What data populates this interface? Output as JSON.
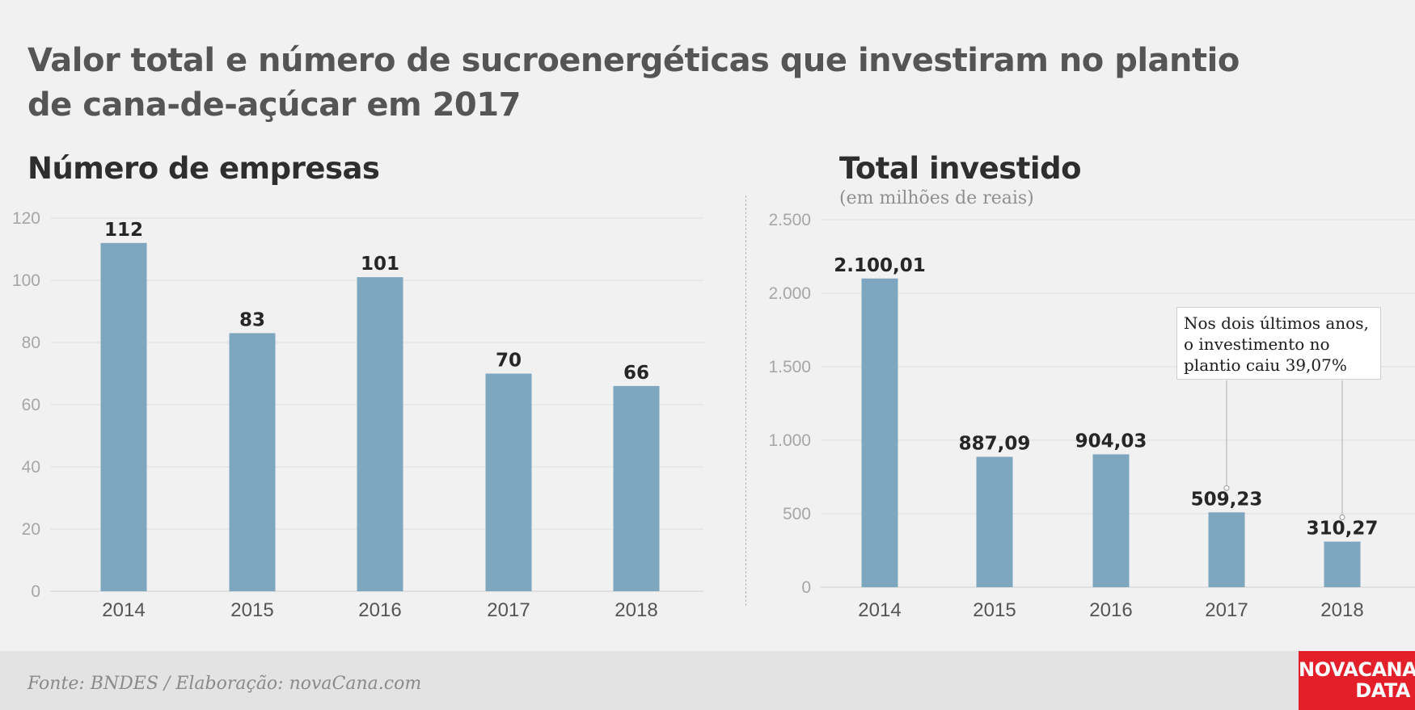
{
  "title_line1": "Valor total e número de sucroenergéticas que investiram no plantio",
  "title_line2": "de cana-de-açúcar em 2017",
  "footer": {
    "source": "Fonte: BNDES / Elaboração: novaCana.com",
    "logo_line1": "NOVACANA",
    "logo_line2": "DATA"
  },
  "callout": {
    "line1": "Nos dois últimos anos,",
    "line2": "o investimento no",
    "line3": "plantio caiu 39,07%"
  },
  "chart_data": [
    {
      "type": "bar",
      "title": "Número de empresas",
      "categories": [
        "2014",
        "2015",
        "2016",
        "2017",
        "2018"
      ],
      "values": [
        112,
        83,
        101,
        70,
        66
      ],
      "value_labels": [
        "112",
        "83",
        "101",
        "70",
        "66"
      ],
      "ylim": [
        0,
        120
      ],
      "yticks": [
        0,
        20,
        40,
        60,
        80,
        100,
        120
      ],
      "ytick_labels": [
        "0",
        "20",
        "40",
        "60",
        "80",
        "100",
        "120"
      ],
      "grid": true,
      "color": "#7ea6be"
    },
    {
      "type": "bar",
      "title": "Total investido",
      "subtitle": "(em milhões de reais)",
      "categories": [
        "2014",
        "2015",
        "2016",
        "2017",
        "2018"
      ],
      "values": [
        2100.01,
        887.09,
        904.03,
        509.23,
        310.27
      ],
      "value_labels": [
        "2.100,01",
        "887,09",
        "904,03",
        "509,23",
        "310,27"
      ],
      "ylim": [
        0,
        2500
      ],
      "yticks": [
        0,
        500,
        1000,
        1500,
        2000,
        2500
      ],
      "ytick_labels": [
        "0",
        "500",
        "1.000",
        "1.500",
        "2.000",
        "2.500"
      ],
      "grid": true,
      "color": "#7ea6be",
      "annotation": "Nos dois últimos anos, o investimento no plantio caiu 39,07%"
    }
  ]
}
